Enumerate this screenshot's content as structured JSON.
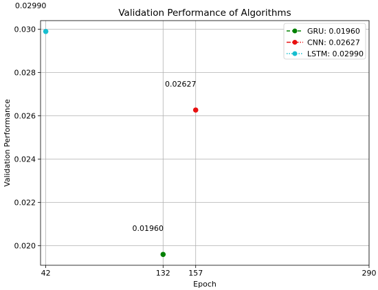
{
  "chart_data": {
    "type": "scatter",
    "title": "Validation Performance of Algorithms",
    "xlabel": "Epoch",
    "ylabel": "Validation Performance",
    "xlim": [
      38,
      290
    ],
    "ylim": [
      0.0191,
      0.0304
    ],
    "x_ticks": [
      42,
      132,
      157,
      290
    ],
    "x_tick_labels": [
      "42",
      "132",
      "157",
      "290"
    ],
    "y_ticks": [
      0.02,
      0.022,
      0.024,
      0.026,
      0.028,
      0.03
    ],
    "y_tick_labels": [
      "0.020",
      "0.022",
      "0.024",
      "0.026",
      "0.028",
      "0.030"
    ],
    "grid": true,
    "legend_position": "top-right",
    "series": [
      {
        "name": "GRU: 0.01960",
        "x": 132,
        "y": 0.0196,
        "color": "#008000",
        "linestyle": "dashed",
        "annotation": "0.01960"
      },
      {
        "name": "CNN: 0.02627",
        "x": 157,
        "y": 0.02627,
        "color": "#e81010",
        "linestyle": "dashdot",
        "annotation": "0.02627"
      },
      {
        "name": "LSTM: 0.02990",
        "x": 42,
        "y": 0.0299,
        "color": "#17becf",
        "linestyle": "dotted",
        "annotation": "0.02990"
      }
    ]
  }
}
